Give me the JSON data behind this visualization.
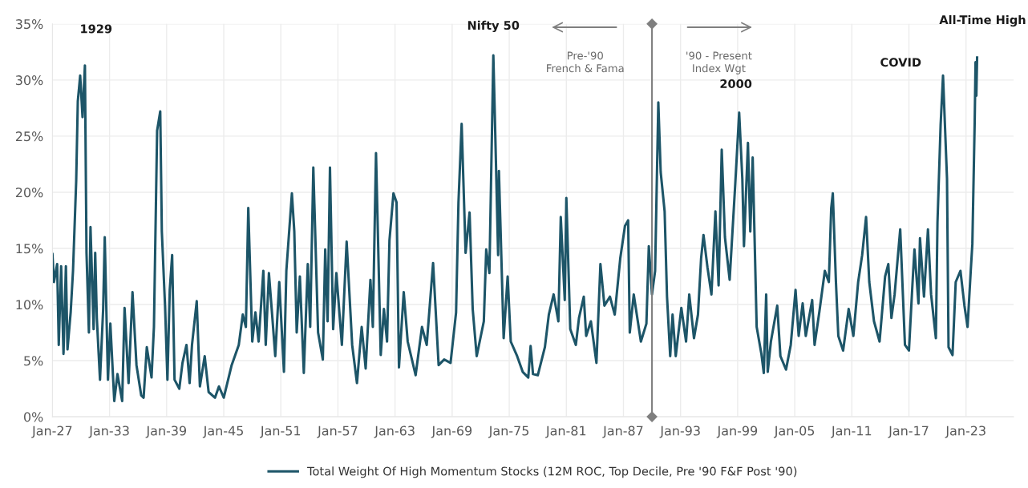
{
  "chart_data": {
    "type": "line",
    "x": [
      "1927-01",
      "1927-03",
      "1927-07",
      "1927-09",
      "1927-12",
      "1928-03",
      "1928-06",
      "1928-08",
      "1928-12",
      "1929-03",
      "1929-07",
      "1929-09",
      "1929-12",
      "1930-03",
      "1930-06",
      "1930-08",
      "1930-11",
      "1931-01",
      "1931-05",
      "1931-07",
      "1931-09",
      "1932-01",
      "1932-05",
      "1932-07",
      "1932-11",
      "1933-02",
      "1933-07",
      "1933-11",
      "1934-05",
      "1934-08",
      "1935-01",
      "1935-06",
      "1935-11",
      "1936-05",
      "1936-08",
      "1936-12",
      "1937-06",
      "1937-09",
      "1938-01",
      "1938-05",
      "1938-07",
      "1938-11",
      "1939-02",
      "1939-05",
      "1939-08",
      "1939-11",
      "1940-05",
      "1940-09",
      "1941-02",
      "1941-06",
      "1941-09",
      "1942-03",
      "1942-07",
      "1943-01",
      "1943-06",
      "1944-02",
      "1944-07",
      "1945-01",
      "1945-11",
      "1946-08",
      "1947-01",
      "1947-05",
      "1947-08",
      "1948-01",
      "1948-05",
      "1948-09",
      "1949-03",
      "1949-06",
      "1949-10",
      "1950-02",
      "1950-06",
      "1950-11",
      "1951-05",
      "1951-08",
      "1952-03",
      "1952-06",
      "1952-09",
      "1953-01",
      "1953-06",
      "1953-11",
      "1954-02",
      "1954-06",
      "1954-12",
      "1955-06",
      "1955-09",
      "1955-12",
      "1956-03",
      "1956-07",
      "1956-11",
      "1957-06",
      "1957-12",
      "1958-07",
      "1959-01",
      "1959-07",
      "1959-12",
      "1960-06",
      "1960-09",
      "1961-01",
      "1961-07",
      "1961-11",
      "1962-03",
      "1962-06",
      "1962-11",
      "1963-03",
      "1963-06",
      "1963-12",
      "1964-05",
      "1965-03",
      "1965-11",
      "1966-05",
      "1967-01",
      "1967-08",
      "1968-03",
      "1968-11",
      "1969-06",
      "1969-09",
      "1970-01",
      "1970-06",
      "1970-11",
      "1971-03",
      "1971-08",
      "1972-05",
      "1972-08",
      "1972-12",
      "1973-05",
      "1973-07",
      "1973-11",
      "1973-12",
      "1974-06",
      "1974-11",
      "1975-03",
      "1975-11",
      "1976-06",
      "1977-01",
      "1977-04",
      "1977-07",
      "1978-01",
      "1978-10",
      "1979-03",
      "1979-09",
      "1980-03",
      "1980-06",
      "1980-11",
      "1981-01",
      "1981-06",
      "1982-01",
      "1982-05",
      "1982-11",
      "1983-02",
      "1983-08",
      "1984-03",
      "1984-08",
      "1985-01",
      "1985-08",
      "1986-02",
      "1986-09",
      "1987-03",
      "1987-07",
      "1987-09",
      "1988-02",
      "1988-11",
      "1989-06",
      "1989-09",
      "1990-01",
      "1990-05",
      "1990-09",
      "1990-12",
      "1991-05",
      "1991-08",
      "1991-12",
      "1992-03",
      "1992-07",
      "1993-02",
      "1993-08",
      "1993-12",
      "1994-06",
      "1994-11",
      "1995-03",
      "1995-06",
      "1995-11",
      "1996-04",
      "1996-09",
      "1997-01",
      "1997-05",
      "1997-09",
      "1998-03",
      "1998-10",
      "1999-03",
      "1999-07",
      "1999-09",
      "2000-02",
      "2000-05",
      "2000-08",
      "2001-01",
      "2001-07",
      "2001-10",
      "2002-01",
      "2002-03",
      "2002-07",
      "2003-03",
      "2003-07",
      "2004-02",
      "2004-08",
      "2005-02",
      "2005-06",
      "2005-11",
      "2006-03",
      "2006-11",
      "2007-02",
      "2007-08",
      "2008-03",
      "2008-08",
      "2008-11",
      "2009-01",
      "2009-05",
      "2009-08",
      "2010-02",
      "2010-09",
      "2011-03",
      "2011-09",
      "2012-02",
      "2012-07",
      "2012-11",
      "2013-05",
      "2013-12",
      "2014-07",
      "2014-11",
      "2015-03",
      "2015-07",
      "2016-02",
      "2016-08",
      "2017-01",
      "2017-06",
      "2017-08",
      "2018-01",
      "2018-03",
      "2018-08",
      "2019-01",
      "2019-05",
      "2019-11",
      "2020-01",
      "2020-05",
      "2020-08",
      "2021-01",
      "2021-03",
      "2021-08",
      "2021-12",
      "2022-06",
      "2022-11",
      "2023-03",
      "2023-07",
      "2023-09",
      "2023-12",
      "2024-01",
      "2024-02",
      "2024-03"
    ],
    "series": [
      {
        "name": "Total Weight Of High Momentum Stocks (12M ROC, Top Decile, Pre '90 F&F Post '90)",
        "color": "#1d5568",
        "values": [
          14.5,
          12.0,
          13.6,
          6.4,
          13.4,
          5.6,
          13.4,
          6.0,
          9.3,
          13.0,
          21.0,
          28.1,
          30.4,
          26.7,
          31.3,
          14.6,
          7.5,
          16.9,
          7.8,
          14.6,
          8.8,
          3.3,
          9.6,
          16.0,
          3.3,
          8.3,
          1.4,
          3.8,
          1.4,
          9.7,
          3.0,
          11.1,
          4.6,
          1.9,
          1.7,
          6.2,
          3.5,
          8.0,
          25.5,
          27.2,
          16.5,
          9.9,
          3.3,
          11.3,
          14.4,
          3.3,
          2.5,
          4.8,
          6.4,
          3.0,
          6.4,
          10.3,
          2.7,
          5.4,
          2.2,
          1.7,
          2.7,
          1.7,
          4.6,
          6.4,
          9.1,
          8.0,
          18.6,
          6.7,
          9.3,
          6.7,
          13.0,
          6.4,
          12.8,
          9.1,
          5.4,
          12.0,
          4.0,
          13.0,
          19.9,
          16.5,
          7.5,
          12.5,
          3.9,
          13.6,
          8.0,
          22.2,
          7.5,
          5.1,
          14.9,
          8.5,
          22.2,
          7.8,
          12.8,
          6.4,
          15.6,
          6.4,
          3.0,
          8.0,
          4.3,
          12.2,
          8.0,
          23.5,
          5.5,
          9.6,
          6.7,
          15.7,
          19.9,
          19.1,
          4.4,
          11.1,
          6.7,
          3.7,
          8.0,
          6.4,
          13.7,
          4.6,
          5.1,
          4.8,
          9.3,
          19.1,
          26.1,
          14.6,
          18.2,
          9.6,
          5.4,
          8.5,
          14.9,
          12.8,
          32.2,
          26.5,
          14.4,
          21.9,
          7.0,
          12.5,
          6.7,
          5.4,
          4.0,
          3.5,
          6.3,
          3.8,
          3.7,
          6.2,
          9.1,
          10.9,
          8.5,
          17.8,
          10.4,
          19.5,
          7.8,
          6.4,
          8.8,
          10.7,
          7.2,
          8.5,
          4.8,
          13.6,
          9.9,
          10.7,
          9.1,
          14.1,
          17.0,
          17.5,
          7.5,
          10.9,
          6.7,
          8.3,
          15.2,
          10.9,
          13.0,
          28.0,
          21.8,
          18.3,
          10.7,
          5.4,
          9.1,
          5.4,
          9.7,
          6.7,
          10.9,
          7.0,
          9.1,
          14.1,
          16.2,
          13.3,
          10.9,
          18.3,
          11.7,
          23.8,
          16.0,
          12.2,
          20.7,
          27.1,
          21.2,
          15.2,
          24.4,
          16.5,
          23.1,
          8.0,
          5.6,
          3.9,
          10.9,
          4.0,
          6.7,
          9.9,
          5.4,
          4.2,
          6.4,
          11.3,
          7.2,
          10.1,
          7.2,
          10.4,
          6.4,
          9.3,
          13.0,
          12.0,
          18.6,
          19.9,
          12.0,
          7.2,
          5.9,
          9.6,
          7.2,
          12.0,
          14.4,
          17.8,
          12.0,
          8.5,
          6.7,
          12.5,
          13.6,
          8.8,
          10.9,
          16.7,
          6.4,
          5.9,
          12.5,
          14.9,
          10.1,
          15.9,
          10.7,
          16.7,
          10.9,
          7.0,
          17.3,
          26.0,
          30.4,
          21.2,
          6.2,
          5.5,
          12.0,
          13.0,
          9.9,
          8.0,
          13.0,
          15.4,
          26.5,
          31.6,
          28.6,
          32.0
        ]
      }
    ],
    "xlim": [
      "1927-01",
      "2028-01"
    ],
    "xticks": [
      {
        "value": "1927-01",
        "label": "Jan-27"
      },
      {
        "value": "1933-01",
        "label": "Jan-33"
      },
      {
        "value": "1939-01",
        "label": "Jan-39"
      },
      {
        "value": "1945-01",
        "label": "Jan-45"
      },
      {
        "value": "1951-01",
        "label": "Jan-51"
      },
      {
        "value": "1957-01",
        "label": "Jan-57"
      },
      {
        "value": "1963-01",
        "label": "Jan-63"
      },
      {
        "value": "1969-01",
        "label": "Jan-69"
      },
      {
        "value": "1975-01",
        "label": "Jan-75"
      },
      {
        "value": "1981-01",
        "label": "Jan-81"
      },
      {
        "value": "1987-01",
        "label": "Jan-87"
      },
      {
        "value": "1993-01",
        "label": "Jan-93"
      },
      {
        "value": "1999-01",
        "label": "Jan-99"
      },
      {
        "value": "2005-01",
        "label": "Jan-05"
      },
      {
        "value": "2011-01",
        "label": "Jan-11"
      },
      {
        "value": "2017-01",
        "label": "Jan-17"
      },
      {
        "value": "2023-01",
        "label": "Jan-23"
      }
    ],
    "ylim": [
      0,
      35
    ],
    "yticks": [
      {
        "value": 0,
        "label": "0%"
      },
      {
        "value": 5,
        "label": "5%"
      },
      {
        "value": 10,
        "label": "10%"
      },
      {
        "value": 15,
        "label": "15%"
      },
      {
        "value": 20,
        "label": "20%"
      },
      {
        "value": 25,
        "label": "25%"
      },
      {
        "value": 30,
        "label": "30%"
      },
      {
        "value": 35,
        "label": "35%"
      }
    ],
    "grid": true,
    "legend": "bottom",
    "line_style": "solid",
    "ref_lines": [
      {
        "axis": "x",
        "value": "1990-01",
        "color": "#7f7f7f"
      }
    ],
    "annotations": [
      {
        "text": "1929",
        "x": "1930-06",
        "y": 31.3
      },
      {
        "text": "Nifty 50",
        "x": "1973-05",
        "y": 32.2
      },
      {
        "text": "2000",
        "x": "1999-03",
        "y": 27.1
      },
      {
        "text": "COVID",
        "x": "2020-08",
        "y": 30.4
      },
      {
        "text": "All-Time High",
        "x": "2024-03",
        "y": 32.0
      },
      "Pre-'90\nFrench & Fama",
      "'90 - Present\nIndex Wgt"
    ]
  }
}
